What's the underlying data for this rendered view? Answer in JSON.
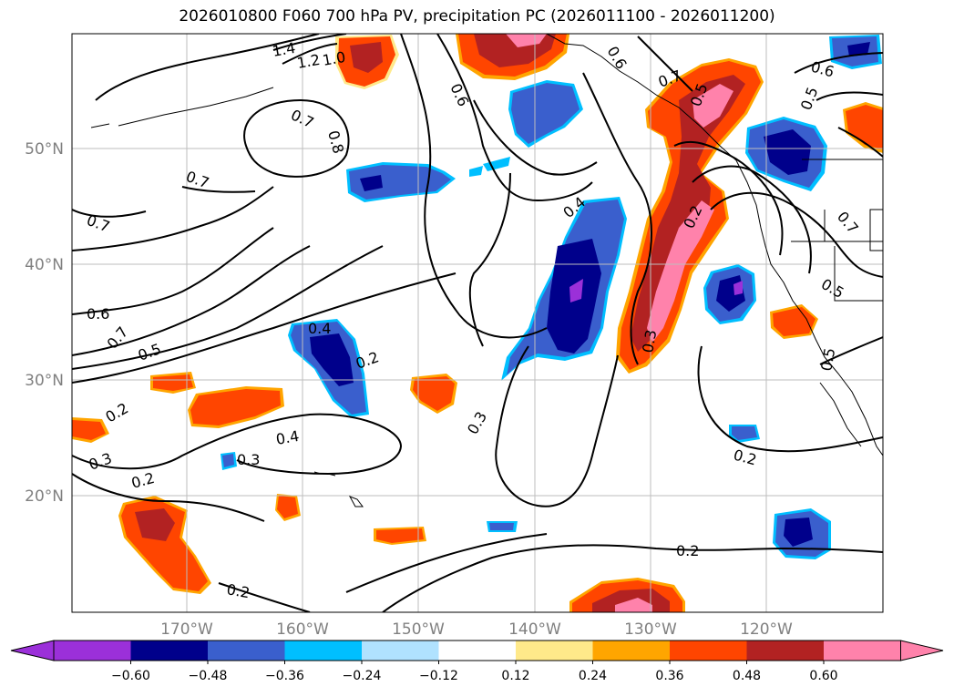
{
  "title": "2026010800 F060 700 hPa PV, precipitation PC (2026011100 - 2026011200)",
  "latitude_labels": [
    "50°N",
    "40°N",
    "30°N",
    "20°N"
  ],
  "longitude_labels": [
    "170°W",
    "160°W",
    "150°W",
    "140°W",
    "130°W",
    "120°W"
  ],
  "colorbar": {
    "tick_labels": [
      "−0.60",
      "−0.48",
      "−0.36",
      "−0.24",
      "−0.12",
      "0.12",
      "0.24",
      "0.36",
      "0.48",
      "0.60"
    ],
    "colors": [
      "#9b30d9",
      "#00008b",
      "#3a5fcd",
      "#00bfff",
      "#b0e2ff",
      "#ffffff",
      "#ffe98a",
      "#ffa500",
      "#ff4500",
      "#b22222",
      "#ff82ab",
      "#ff82ab"
    ]
  },
  "contour_labels": [
    "1.4",
    "1.2",
    "1.0",
    "0.7",
    "0.8",
    "0.7",
    "0.7",
    "0.6",
    "0.6",
    "0.7",
    "0.6",
    "0.5",
    "0.4",
    "0.5",
    "0.5",
    "0.7",
    "0.4",
    "0.2",
    "0.4",
    "0.3",
    "0.3",
    "0.2",
    "0.3",
    "0.2",
    "0.2",
    "0.2",
    "0.2",
    "0.5",
    "0.3",
    "0.2",
    "0.5",
    "0.7",
    "0.6"
  ],
  "colors": {
    "purple": "#9b30d9",
    "navy": "#00008b",
    "blue": "#3a5fcd",
    "cyan": "#00bfff",
    "yellow": "#ffe98a",
    "orange": "#ffa500",
    "redorange": "#ff4500",
    "darkred": "#b22222",
    "pink": "#ff82ab",
    "grid": "#bdbdbd",
    "label": "#808080"
  }
}
